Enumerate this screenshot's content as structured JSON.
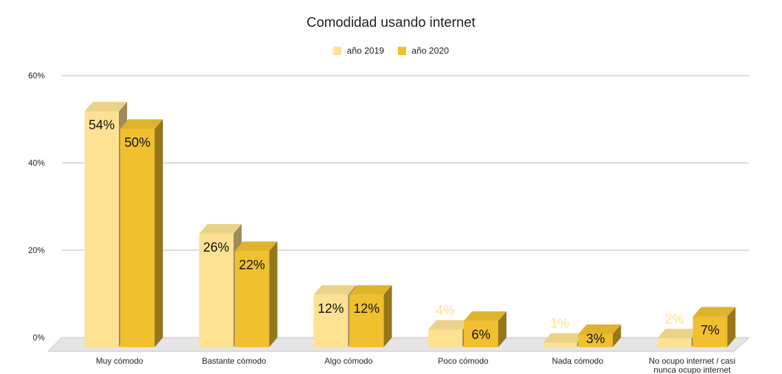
{
  "chart_data": {
    "type": "bar",
    "title": "Comodidad usando internet",
    "xlabel": "",
    "ylabel": "",
    "ylim": [
      0,
      60
    ],
    "yticks": [
      "0%",
      "20%",
      "40%",
      "60%"
    ],
    "grid": true,
    "legend_position": "top",
    "style": "3d",
    "categories": [
      "Muy cómodo",
      "Bastante cómodo",
      "Algo cómodo",
      "Poco cómodo",
      "Nada cómodo",
      "No ocupo internet / casi nunca ocupo internet"
    ],
    "series": [
      {
        "name": "año 2019",
        "color": "#fde293",
        "values": [
          54,
          26,
          12,
          4,
          1,
          2
        ],
        "labels": [
          "54%",
          "26%",
          "12%",
          "4%",
          "1%",
          "2%"
        ]
      },
      {
        "name": "año 2020",
        "color": "#f0c02f",
        "values": [
          50,
          22,
          12,
          6,
          3,
          7
        ],
        "labels": [
          "50%",
          "22%",
          "12%",
          "6%",
          "3%",
          "7%"
        ]
      }
    ]
  }
}
